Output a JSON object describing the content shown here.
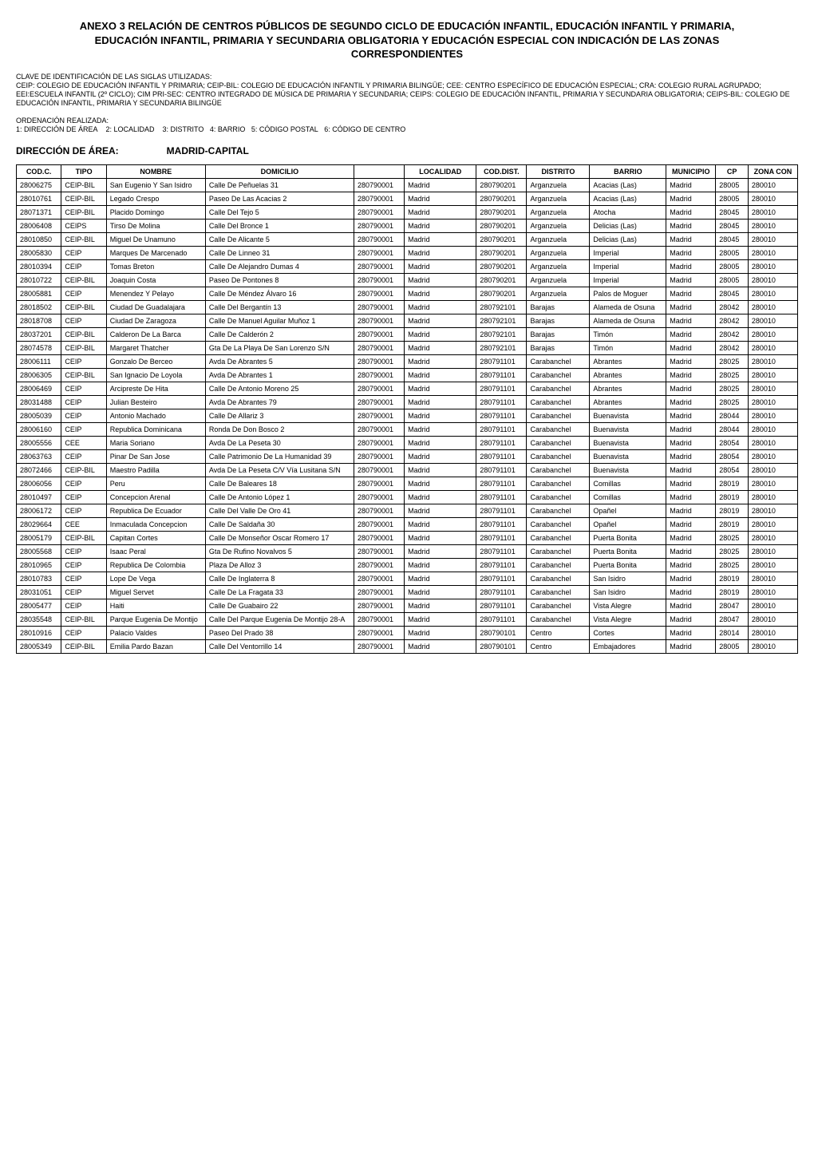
{
  "title": "ANEXO 3 RELACIÓN DE CENTROS PÚBLICOS DE SEGUNDO CICLO DE EDUCACIÓN INFANTIL, EDUCACIÓN INFANTIL Y PRIMARIA, EDUCACIÓN INFANTIL, PRIMARIA Y SECUNDARIA OBLIGATORIA Y EDUCACIÓN ESPECIAL CON INDICACIÓN DE LAS ZONAS CORRESPONDIENTES",
  "clave_heading": "CLAVE DE IDENTIFICACIÓN DE LAS SIGLAS UTILIZADAS:",
  "clave_body": "CEIP: COLEGIO DE EDUCACIÓN INFANTIL Y PRIMARIA; CEIP-BIL: COLEGIO DE EDUCACIÓN INFANTIL Y PRIMARIA BILINGÜE; CEE: CENTRO ESPECÍFICO DE EDUCACIÓN ESPECIAL; CRA: COLEGIO RURAL AGRUPADO; EEI:ESCUELA INFANTIL (2º CICLO); CIM PRI-SEC: CENTRO INTEGRADO DE MÚSICA DE PRIMARIA Y SECUNDARIA; CEIPS: COLEGIO DE EDUCACIÓN INFANTIL, PRIMARIA Y SECUNDARIA OBLIGATORIA; CEIPS-BIL: COLEGIO DE EDUCACIÓN INFANTIL, PRIMARIA Y SECUNDARIA BILINGÜE",
  "ordenacion_heading": "ORDENACIÓN REALIZADA:",
  "ordenacion_body": "1: DIRECCIÓN DE ÁREA    2: LOCALIDAD    3: DISTRITO   4: BARRIO   5: CÓDIGO POSTAL   6: CÓDIGO DE CENTRO",
  "direccion_label": "DIRECCIÓN DE ÁREA:",
  "direccion_value": "MADRID-CAPITAL",
  "columns": [
    "COD.C.",
    "TIPO",
    "NOMBRE",
    "DOMICILIO",
    "",
    "LOCALIDAD",
    "COD.DIST.",
    "DISTRITO",
    "BARRIO",
    "MUNICIPIO",
    "CP",
    "ZONA CON"
  ],
  "rows": [
    [
      "28006275",
      "CEIP-BIL",
      "San Eugenio Y San Isidro",
      "Calle De Peñuelas 31",
      "280790001",
      "Madrid",
      "280790201",
      "Arganzuela",
      "Acacias (Las)",
      "Madrid",
      "28005",
      "280010"
    ],
    [
      "28010761",
      "CEIP-BIL",
      "Legado Crespo",
      "Paseo De Las Acacias 2",
      "280790001",
      "Madrid",
      "280790201",
      "Arganzuela",
      "Acacias (Las)",
      "Madrid",
      "28005",
      "280010"
    ],
    [
      "28071371",
      "CEIP-BIL",
      "Placido Domingo",
      "Calle Del Tejo 5",
      "280790001",
      "Madrid",
      "280790201",
      "Arganzuela",
      "Atocha",
      "Madrid",
      "28045",
      "280010"
    ],
    [
      "28006408",
      "CEIPS",
      "Tirso De Molina",
      "Calle Del Bronce 1",
      "280790001",
      "Madrid",
      "280790201",
      "Arganzuela",
      "Delicias (Las)",
      "Madrid",
      "28045",
      "280010"
    ],
    [
      "28010850",
      "CEIP-BIL",
      "Miguel De Unamuno",
      "Calle De Alicante 5",
      "280790001",
      "Madrid",
      "280790201",
      "Arganzuela",
      "Delicias (Las)",
      "Madrid",
      "28045",
      "280010"
    ],
    [
      "28005830",
      "CEIP",
      "Marques De Marcenado",
      "Calle De Linneo 31",
      "280790001",
      "Madrid",
      "280790201",
      "Arganzuela",
      "Imperial",
      "Madrid",
      "28005",
      "280010"
    ],
    [
      "28010394",
      "CEIP",
      "Tomas Breton",
      "Calle De Alejandro Dumas 4",
      "280790001",
      "Madrid",
      "280790201",
      "Arganzuela",
      "Imperial",
      "Madrid",
      "28005",
      "280010"
    ],
    [
      "28010722",
      "CEIP-BIL",
      "Joaquin Costa",
      "Paseo De Pontones 8",
      "280790001",
      "Madrid",
      "280790201",
      "Arganzuela",
      "Imperial",
      "Madrid",
      "28005",
      "280010"
    ],
    [
      "28005881",
      "CEIP",
      "Menendez Y Pelayo",
      "Calle De Méndez Álvaro 16",
      "280790001",
      "Madrid",
      "280790201",
      "Arganzuela",
      "Palos de Moguer",
      "Madrid",
      "28045",
      "280010"
    ],
    [
      "28018502",
      "CEIP-BIL",
      "Ciudad De Guadalajara",
      "Calle Del Bergantín 13",
      "280790001",
      "Madrid",
      "280792101",
      "Barajas",
      "Alameda de Osuna",
      "Madrid",
      "28042",
      "280010"
    ],
    [
      "28018708",
      "CEIP",
      "Ciudad De Zaragoza",
      "Calle De Manuel Aguilar Muñoz 1",
      "280790001",
      "Madrid",
      "280792101",
      "Barajas",
      "Alameda de Osuna",
      "Madrid",
      "28042",
      "280010"
    ],
    [
      "28037201",
      "CEIP-BIL",
      "Calderon De La Barca",
      "Calle De Calderón 2",
      "280790001",
      "Madrid",
      "280792101",
      "Barajas",
      "Timón",
      "Madrid",
      "28042",
      "280010"
    ],
    [
      "28074578",
      "CEIP-BIL",
      "Margaret Thatcher",
      "Gta De La Playa De San Lorenzo S/N",
      "280790001",
      "Madrid",
      "280792101",
      "Barajas",
      "Timón",
      "Madrid",
      "28042",
      "280010"
    ],
    [
      "28006111",
      "CEIP",
      "Gonzalo De Berceo",
      "Avda De Abrantes 5",
      "280790001",
      "Madrid",
      "280791101",
      "Carabanchel",
      "Abrantes",
      "Madrid",
      "28025",
      "280010"
    ],
    [
      "28006305",
      "CEIP-BIL",
      "San Ignacio De Loyola",
      "Avda De Abrantes 1",
      "280790001",
      "Madrid",
      "280791101",
      "Carabanchel",
      "Abrantes",
      "Madrid",
      "28025",
      "280010"
    ],
    [
      "28006469",
      "CEIP",
      "Arcipreste De Hita",
      "Calle De Antonio Moreno 25",
      "280790001",
      "Madrid",
      "280791101",
      "Carabanchel",
      "Abrantes",
      "Madrid",
      "28025",
      "280010"
    ],
    [
      "28031488",
      "CEIP",
      "Julian Besteiro",
      "Avda De Abrantes 79",
      "280790001",
      "Madrid",
      "280791101",
      "Carabanchel",
      "Abrantes",
      "Madrid",
      "28025",
      "280010"
    ],
    [
      "28005039",
      "CEIP",
      "Antonio Machado",
      "Calle De Allariz 3",
      "280790001",
      "Madrid",
      "280791101",
      "Carabanchel",
      "Buenavista",
      "Madrid",
      "28044",
      "280010"
    ],
    [
      "28006160",
      "CEIP",
      "Republica Dominicana",
      "Ronda De Don Bosco 2",
      "280790001",
      "Madrid",
      "280791101",
      "Carabanchel",
      "Buenavista",
      "Madrid",
      "28044",
      "280010"
    ],
    [
      "28005556",
      "CEE",
      "Maria Soriano",
      "Avda De La Peseta 30",
      "280790001",
      "Madrid",
      "280791101",
      "Carabanchel",
      "Buenavista",
      "Madrid",
      "28054",
      "280010"
    ],
    [
      "28063763",
      "CEIP",
      "Pinar De San Jose",
      "Calle Patrimonio De La Humanidad 39",
      "280790001",
      "Madrid",
      "280791101",
      "Carabanchel",
      "Buenavista",
      "Madrid",
      "28054",
      "280010"
    ],
    [
      "28072466",
      "CEIP-BIL",
      "Maestro Padilla",
      "Avda De La Peseta C/V Vía Lusitana S/N",
      "280790001",
      "Madrid",
      "280791101",
      "Carabanchel",
      "Buenavista",
      "Madrid",
      "28054",
      "280010"
    ],
    [
      "28006056",
      "CEIP",
      "Peru",
      "Calle De Baleares 18",
      "280790001",
      "Madrid",
      "280791101",
      "Carabanchel",
      "Comillas",
      "Madrid",
      "28019",
      "280010"
    ],
    [
      "28010497",
      "CEIP",
      "Concepcion Arenal",
      "Calle De Antonio López 1",
      "280790001",
      "Madrid",
      "280791101",
      "Carabanchel",
      "Comillas",
      "Madrid",
      "28019",
      "280010"
    ],
    [
      "28006172",
      "CEIP",
      "Republica De Ecuador",
      "Calle Del Valle De Oro 41",
      "280790001",
      "Madrid",
      "280791101",
      "Carabanchel",
      "Opañel",
      "Madrid",
      "28019",
      "280010"
    ],
    [
      "28029664",
      "CEE",
      "Inmaculada Concepcion",
      "Calle De Saldaña 30",
      "280790001",
      "Madrid",
      "280791101",
      "Carabanchel",
      "Opañel",
      "Madrid",
      "28019",
      "280010"
    ],
    [
      "28005179",
      "CEIP-BIL",
      "Capitan Cortes",
      "Calle De Monseñor Oscar Romero 17",
      "280790001",
      "Madrid",
      "280791101",
      "Carabanchel",
      "Puerta Bonita",
      "Madrid",
      "28025",
      "280010"
    ],
    [
      "28005568",
      "CEIP",
      "Isaac Peral",
      "Gta De Rufino Novalvos 5",
      "280790001",
      "Madrid",
      "280791101",
      "Carabanchel",
      "Puerta Bonita",
      "Madrid",
      "28025",
      "280010"
    ],
    [
      "28010965",
      "CEIP",
      "Republica De Colombia",
      "Plaza De Alloz 3",
      "280790001",
      "Madrid",
      "280791101",
      "Carabanchel",
      "Puerta Bonita",
      "Madrid",
      "28025",
      "280010"
    ],
    [
      "28010783",
      "CEIP",
      "Lope De Vega",
      "Calle De Inglaterra 8",
      "280790001",
      "Madrid",
      "280791101",
      "Carabanchel",
      "San Isidro",
      "Madrid",
      "28019",
      "280010"
    ],
    [
      "28031051",
      "CEIP",
      "Miguel Servet",
      "Calle De La Fragata 33",
      "280790001",
      "Madrid",
      "280791101",
      "Carabanchel",
      "San Isidro",
      "Madrid",
      "28019",
      "280010"
    ],
    [
      "28005477",
      "CEIP",
      "Haiti",
      "Calle De Guabairo 22",
      "280790001",
      "Madrid",
      "280791101",
      "Carabanchel",
      "Vista Alegre",
      "Madrid",
      "28047",
      "280010"
    ],
    [
      "28035548",
      "CEIP-BIL",
      "Parque Eugenia De Montijo",
      "Calle Del Parque Eugenia De Montijo 28-A",
      "280790001",
      "Madrid",
      "280791101",
      "Carabanchel",
      "Vista Alegre",
      "Madrid",
      "28047",
      "280010"
    ],
    [
      "28010916",
      "CEIP",
      "Palacio Valdes",
      "Paseo Del Prado 38",
      "280790001",
      "Madrid",
      "280790101",
      "Centro",
      "Cortes",
      "Madrid",
      "28014",
      "280010"
    ],
    [
      "28005349",
      "CEIP-BIL",
      "Emilia Pardo Bazan",
      "Calle Del Ventorrillo 14",
      "280790001",
      "Madrid",
      "280790101",
      "Centro",
      "Embajadores",
      "Madrid",
      "28005",
      "280010"
    ]
  ]
}
